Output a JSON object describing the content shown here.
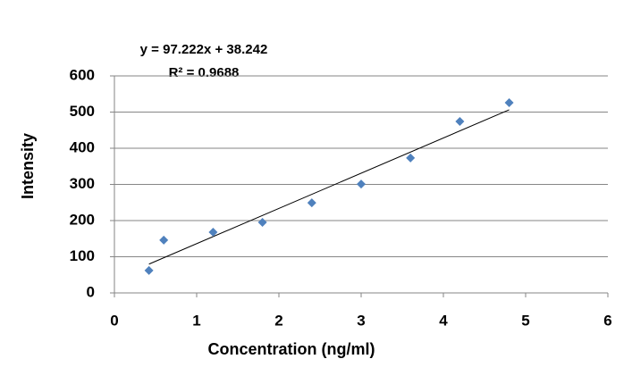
{
  "chart_data": {
    "type": "scatter",
    "x_label": "Concentration (ng/ml)",
    "y_label": "Intensity",
    "annotations": [
      "y = 97.222x + 38.242",
      "R² = 0.9688"
    ],
    "series": [
      {
        "color": "#4f81bd",
        "x": [
          0.42,
          0.6,
          1.2,
          1.8,
          2.4,
          3.0,
          3.6,
          4.2,
          4.8
        ],
        "values": [
          62,
          146,
          168,
          195,
          249,
          301,
          373,
          474,
          526
        ]
      }
    ],
    "xlim": [
      0,
      6
    ],
    "xticks": [
      0,
      1,
      2,
      3,
      4,
      5,
      6
    ],
    "ylim": [
      0,
      600
    ],
    "yticks": [
      0,
      100,
      200,
      300,
      400,
      500,
      600
    ],
    "grid": true,
    "trendline": true
  }
}
